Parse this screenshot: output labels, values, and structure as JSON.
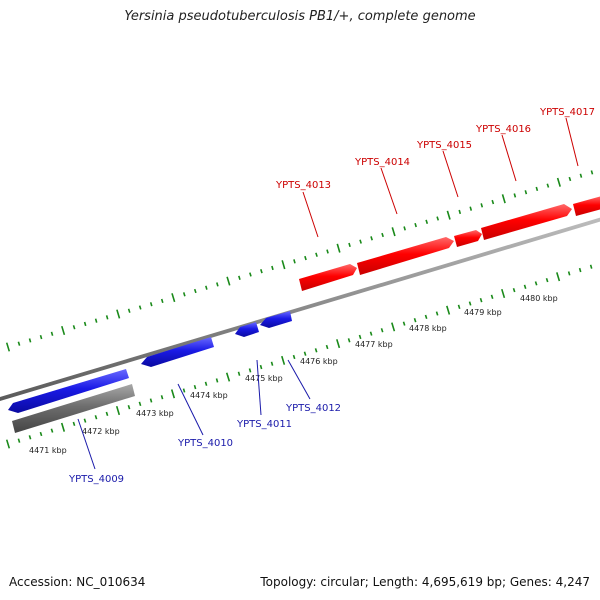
{
  "title": "Yersinia pseudotuberculosis PB1/+, complete genome",
  "footer": {
    "accession": "Accession: NC_010634",
    "summary": "Topology: circular; Length: 4,695,619 bp; Genes: 4,247"
  },
  "colors": {
    "forward_gene": "#ff0000",
    "reverse_gene": "#1111dd",
    "other_feature": "#6a6a6a",
    "backbone": "#8c8c8c",
    "tick": "#1a8a1a",
    "forward_label": "#cc0000",
    "reverse_label": "#1a1aaa"
  },
  "scale_labels": [
    "4471 kbp",
    "4472 kbp",
    "4473 kbp",
    "4474 kbp",
    "4475 kbp",
    "4476 kbp",
    "4477 kbp",
    "4478 kbp",
    "4479 kbp",
    "4480 kbp"
  ],
  "forward_genes": [
    "YPTS_4013",
    "YPTS_4014",
    "YPTS_4015",
    "YPTS_4016",
    "YPTS_4017"
  ],
  "reverse_genes": [
    "YPTS_4009",
    "YPTS_4010",
    "YPTS_4011",
    "YPTS_4012"
  ]
}
